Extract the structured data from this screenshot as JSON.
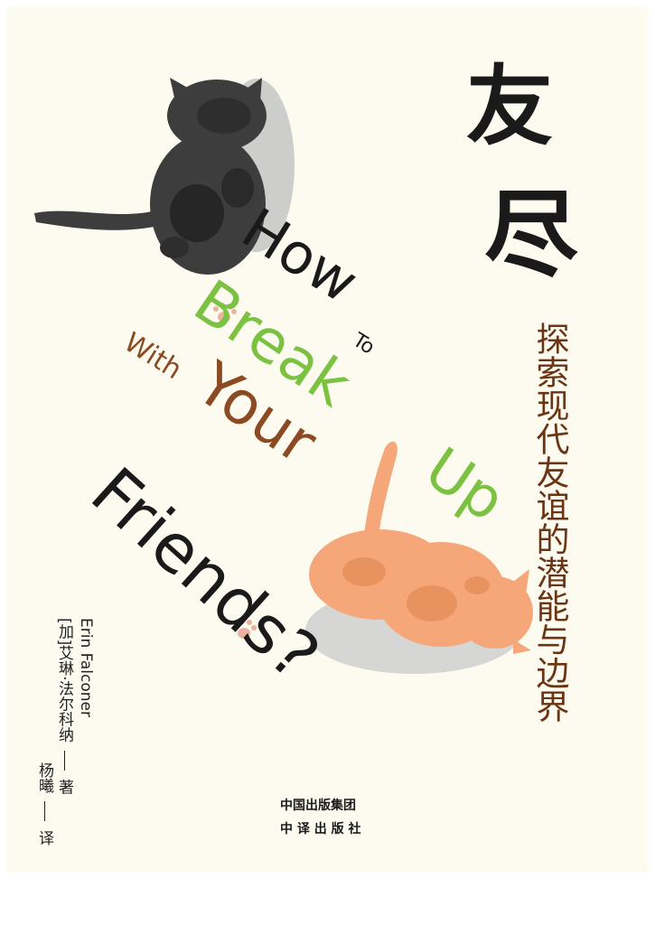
{
  "cover": {
    "title_chars": [
      "友",
      "尽"
    ],
    "subtitle": "探索现代友谊的潜能与边界",
    "english_title": {
      "how": "How",
      "to": "To",
      "break": "Break",
      "with": "With",
      "your": "Your",
      "up": "Up",
      "friends": "Friends?"
    },
    "author_en": "Erin Falconer",
    "author_cn": "[加]艾琳·法尔科纳",
    "author_role": "著",
    "translator": "杨曦",
    "translator_role": "译",
    "publisher_line1": "中国出版集团",
    "publisher_line2": "中 译 出 版 社",
    "colors": {
      "background": "#fdfbf0",
      "black_cat": "#3d3d3d",
      "orange_cat": "#f5a77a",
      "green": "#7cc242",
      "brown": "#8b4a22",
      "title": "#1a1a1a"
    }
  }
}
